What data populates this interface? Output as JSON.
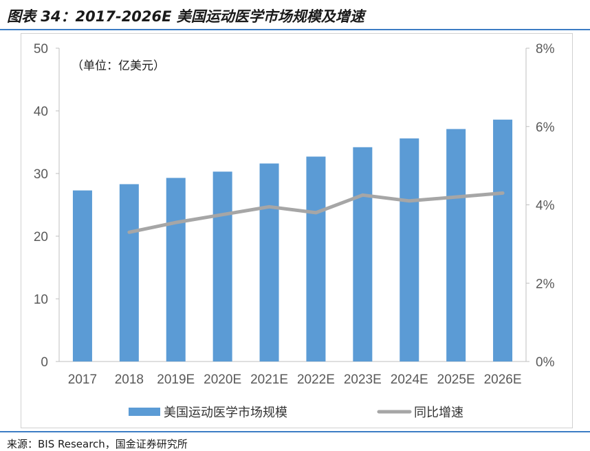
{
  "figure": {
    "title": "图表 34：2017-2026E 美国运动医学市场规模及增速",
    "source": "来源：BIS Research，国金证券研究所"
  },
  "colors": {
    "bar": "#5b9bd5",
    "line": "#a6a6a6",
    "axis": "#bfbfbf",
    "rule": "#3b7cc4"
  },
  "chart_data": {
    "type": "bar",
    "unit_label": "（单位：亿美元）",
    "categories": [
      "2017",
      "2018",
      "2019E",
      "2020E",
      "2021E",
      "2022E",
      "2023E",
      "2024E",
      "2025E",
      "2026E"
    ],
    "series": [
      {
        "name": "美国运动医学市场规模",
        "type": "bar",
        "axis": "left",
        "values": [
          27.3,
          28.3,
          29.3,
          30.3,
          31.6,
          32.7,
          34.2,
          35.6,
          37.1,
          38.6
        ]
      },
      {
        "name": "同比增速",
        "type": "line",
        "axis": "right",
        "values": [
          null,
          3.3,
          3.55,
          3.75,
          3.95,
          3.8,
          4.25,
          4.1,
          4.2,
          4.3
        ]
      }
    ],
    "y_left": {
      "min": 0,
      "max": 50,
      "ticks": [
        "0",
        "10",
        "20",
        "30",
        "40",
        "50"
      ]
    },
    "y_right": {
      "min": 0,
      "max": 8,
      "ticks": [
        "0%",
        "2%",
        "4%",
        "6%",
        "8%"
      ]
    },
    "legend_position": "bottom"
  }
}
